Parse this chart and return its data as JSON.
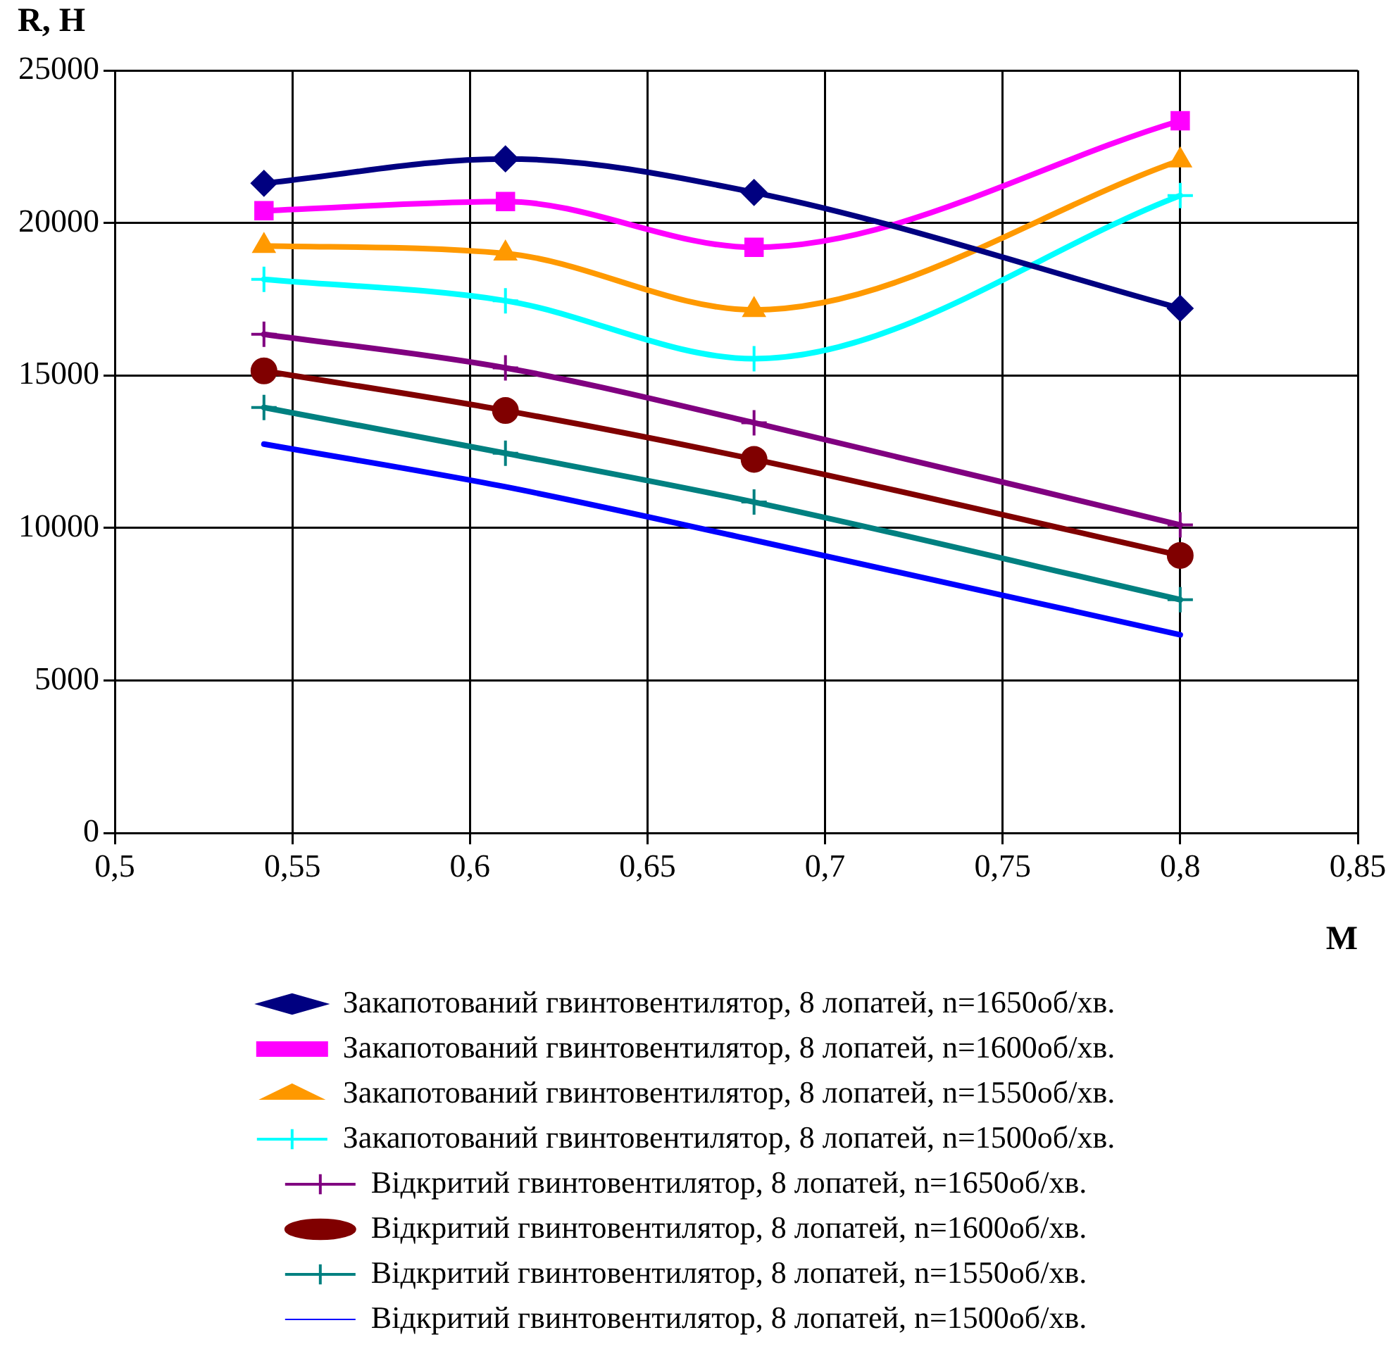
{
  "chart_data": {
    "type": "line",
    "xlabel": "М",
    "ylabel": "R, Н",
    "xlim": [
      0.5,
      0.85
    ],
    "xticks": [
      {
        "value": 0.5,
        "label": "0,5"
      },
      {
        "value": 0.55,
        "label": "0,55"
      },
      {
        "value": 0.6,
        "label": "0,6"
      },
      {
        "value": 0.65,
        "label": "0,65"
      },
      {
        "value": 0.7,
        "label": "0,7"
      },
      {
        "value": 0.75,
        "label": "0,75"
      },
      {
        "value": 0.8,
        "label": "0,8"
      },
      {
        "value": 0.85,
        "label": "0,85"
      }
    ],
    "ylim": [
      0,
      25000
    ],
    "yticks": [
      0,
      5000,
      10000,
      15000,
      20000,
      25000
    ],
    "grid": true,
    "legend": "bottom",
    "x": [
      0.542,
      0.61,
      0.68,
      0.8
    ],
    "series": [
      {
        "name": "Закапотований гвинтовентилятор, 8 лопатей, n=1650об/хв.",
        "color": "#000080",
        "marker": "diamond",
        "values": [
          21300,
          22100,
          21000,
          17200
        ]
      },
      {
        "name": "Закапотований гвинтовентилятор, 8 лопатей, n=1600об/хв.",
        "color": "#ff00ff",
        "marker": "square",
        "values": [
          20400,
          20700,
          19200,
          23350
        ]
      },
      {
        "name": "Закапотований гвинтовентилятор, 8 лопатей, n=1550об/хв.",
        "color": "#ff9900",
        "marker": "triangle",
        "values": [
          19250,
          19000,
          17150,
          22050
        ]
      },
      {
        "name": "Закапотований гвинтовентилятор, 8 лопатей, n=1500об/хв.",
        "color": "#00ffff",
        "marker": "cross",
        "values": [
          18150,
          17450,
          15550,
          20900
        ]
      },
      {
        "name": "Відкритий гвинтовентилятор, 8 лопатей, n=1650об/хв.",
        "color": "#800080",
        "marker": "cross",
        "values": [
          16350,
          15250,
          13450,
          10100
        ]
      },
      {
        "name": "Відкритий гвинтовентилятор, 8 лопатей, n=1600об/хв.",
        "color": "#800000",
        "marker": "circle",
        "values": [
          15150,
          13850,
          12250,
          9100
        ]
      },
      {
        "name": "Відкритий гвинтовентилятор, 8 лопатей, n=1550об/хв.",
        "color": "#008080",
        "marker": "cross",
        "values": [
          13950,
          12450,
          10850,
          7650
        ]
      },
      {
        "name": "Відкритий гвинтовентилятор, 8 лопатей, n=1500об/хв.",
        "color": "#0000ff",
        "marker": "none",
        "values": [
          12750,
          11350,
          9600,
          6500
        ]
      }
    ]
  }
}
